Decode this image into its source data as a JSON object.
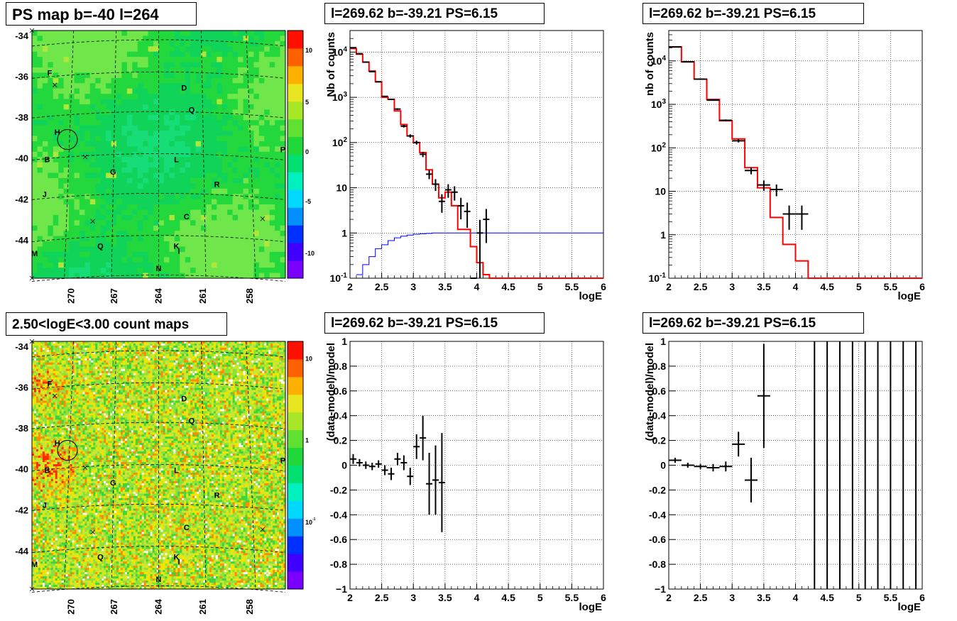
{
  "panels": {
    "map_top_title": "PS map b=-40 l=264",
    "spec_top_title": "l=269.62 b=-39.21 PS=6.15",
    "spec2_top_title": "l=269.62 b=-39.21 PS=6.15",
    "map_bottom_title": "2.50<logE<3.00 count maps",
    "res_bottom_title": "l=269.62 b=-39.21 PS=6.15",
    "res2_bottom_title": "l=269.62 b=-39.21 PS=6.15"
  },
  "maps": {
    "lat_ticks": [
      "-34",
      "-36",
      "-38",
      "-40",
      "-42",
      "-44"
    ],
    "lon_ticks": [
      "270",
      "267",
      "264",
      "261",
      "258"
    ],
    "sources": [
      "F",
      "D",
      "Q",
      "H",
      "P",
      "B",
      "L",
      "G",
      "J",
      "R",
      "C",
      "Q",
      "K",
      "I",
      "M",
      "N"
    ],
    "top_colorbar_ticks": [
      "10",
      "5",
      "0",
      "-5",
      "-10"
    ],
    "bottom_colorbar_ticks": [
      "10",
      "1",
      "10-1"
    ],
    "colors": {
      "base_green": "#1fd43a",
      "hot_red": "#ff2a00",
      "warm_yellow": "#f2e600"
    }
  },
  "chart_data": [
    {
      "type": "line",
      "panel": "spectrum-1",
      "title": "l=269.62 b=-39.21 PS=6.15",
      "xlabel": "logE",
      "ylabel": "Nb of counts",
      "xlim": [
        2,
        6
      ],
      "ylim": [
        0.1,
        30000
      ],
      "log_y": true,
      "grid": true,
      "x_ticks": [
        "2",
        "2.5",
        "3",
        "3.5",
        "4",
        "4.5",
        "5",
        "5.5",
        "6"
      ],
      "y_ticks": [
        "10-1",
        "1",
        "10",
        "102",
        "103",
        "104"
      ],
      "series": [
        {
          "role": "model-total",
          "color": "#ff0000",
          "edges": [
            2.0,
            2.1,
            2.2,
            2.3,
            2.4,
            2.5,
            2.6,
            2.7,
            2.8,
            2.9,
            3.0,
            3.1,
            3.2,
            3.3,
            3.4,
            3.5,
            3.6,
            3.7,
            3.8,
            3.9,
            4.0,
            4.1,
            4.2,
            6.0
          ],
          "values": [
            12000,
            9000,
            6000,
            3800,
            2200,
            1000,
            900,
            500,
            250,
            140,
            100,
            60,
            25,
            12,
            6,
            8,
            4,
            1.2,
            1.2,
            0.5,
            0.22,
            0.12,
            0.1
          ]
        },
        {
          "role": "point-source",
          "color": "#0000ff",
          "edges": [
            2.1,
            2.2,
            2.3,
            2.4,
            2.5,
            2.6,
            2.7,
            2.8,
            2.9,
            3.0,
            3.1,
            3.2,
            3.3,
            4.0,
            6.0
          ],
          "values": [
            0.12,
            0.2,
            0.3,
            0.45,
            0.55,
            0.68,
            0.78,
            0.85,
            0.9,
            0.94,
            0.96,
            0.98,
            1.0,
            1.0
          ]
        },
        {
          "role": "data",
          "color": "#000000",
          "x": [
            2.05,
            2.15,
            2.25,
            2.35,
            2.45,
            2.55,
            2.65,
            2.75,
            2.85,
            2.95,
            3.05,
            3.15,
            3.25,
            3.35,
            3.45,
            3.55,
            3.65,
            3.75,
            3.85,
            3.95,
            4.05,
            4.15
          ],
          "y": [
            12500,
            9200,
            6000,
            3700,
            2200,
            1050,
            900,
            550,
            230,
            140,
            100,
            55,
            20,
            12,
            5,
            9,
            8,
            4,
            3,
            0.1,
            1,
            2
          ],
          "err": [
            110,
            95,
            77,
            61,
            47,
            32,
            30,
            23,
            15,
            12,
            10,
            7.4,
            4.5,
            3.5,
            2.2,
            3,
            2.8,
            2,
            1.7,
            0,
            0.95,
            1.4
          ]
        }
      ]
    },
    {
      "type": "line",
      "panel": "spectrum-2",
      "title": "l=269.62 b=-39.21 PS=6.15",
      "xlabel": "logE",
      "ylabel": "nb of counts",
      "xlim": [
        2,
        6
      ],
      "ylim": [
        0.1,
        50000
      ],
      "log_y": true,
      "grid": true,
      "x_ticks": [
        "2",
        "2.5",
        "3",
        "3.5",
        "4",
        "4.5",
        "5",
        "5.5",
        "6"
      ],
      "y_ticks": [
        "10-1",
        "1",
        "10",
        "102",
        "103",
        "104"
      ],
      "series": [
        {
          "role": "model-total",
          "color": "#ff0000",
          "edges": [
            2.0,
            2.2,
            2.4,
            2.6,
            2.8,
            3.0,
            3.2,
            3.4,
            3.6,
            3.8,
            4.0,
            4.2,
            6.0
          ],
          "values": [
            21000,
            9500,
            3800,
            1300,
            420,
            160,
            35,
            12,
            2.5,
            0.6,
            0.25,
            0.1
          ]
        },
        {
          "role": "data",
          "color": "#000000",
          "x": [
            2.1,
            2.3,
            2.5,
            2.7,
            2.9,
            3.1,
            3.3,
            3.5,
            3.7,
            3.9,
            4.1
          ],
          "y": [
            21000,
            9500,
            3800,
            1250,
            430,
            145,
            30,
            14,
            11,
            3,
            3
          ],
          "err": [
            145,
            97,
            62,
            35,
            21,
            12,
            5.5,
            3.7,
            3.3,
            1.7,
            1.7
          ]
        }
      ]
    },
    {
      "type": "scatter",
      "panel": "residual-1",
      "title": "l=269.62 b=-39.21 PS=6.15",
      "xlabel": "logE",
      "ylabel": "(data-model)/model",
      "xlim": [
        2,
        6
      ],
      "ylim": [
        -1,
        1
      ],
      "grid": true,
      "x_ticks": [
        "2",
        "2.5",
        "3",
        "3.5",
        "4",
        "4.5",
        "5",
        "5.5",
        "6"
      ],
      "y_ticks": [
        "-1",
        "-0.8",
        "-0.6",
        "-0.4",
        "-0.2",
        "0",
        "0.2",
        "0.4",
        "0.6",
        "0.8",
        "1"
      ],
      "series": [
        {
          "role": "residuals",
          "color": "#000000",
          "x": [
            2.05,
            2.15,
            2.25,
            2.35,
            2.45,
            2.55,
            2.65,
            2.75,
            2.85,
            2.95,
            3.05,
            3.15,
            3.25,
            3.35,
            3.45
          ],
          "y": [
            0.05,
            0.02,
            0.0,
            -0.01,
            0.01,
            -0.04,
            -0.07,
            0.05,
            0.02,
            -0.09,
            0.15,
            0.22,
            -0.15,
            -0.12,
            -0.14
          ],
          "err": [
            0.04,
            0.03,
            0.03,
            0.03,
            0.03,
            0.04,
            0.05,
            0.05,
            0.06,
            0.07,
            0.1,
            0.18,
            0.25,
            0.28,
            0.4
          ]
        }
      ]
    },
    {
      "type": "scatter",
      "panel": "residual-2",
      "title": "l=269.62 b=-39.21 PS=6.15",
      "xlabel": "logE",
      "ylabel": "(data-model)/model",
      "xlim": [
        2,
        6
      ],
      "ylim": [
        -1,
        1
      ],
      "grid": true,
      "x_ticks": [
        "2",
        "2.5",
        "3",
        "3.5",
        "4",
        "4.5",
        "5",
        "5.5",
        "6"
      ],
      "y_ticks": [
        "-1",
        "-0.8",
        "-0.6",
        "-0.4",
        "-0.2",
        "0",
        "0.2",
        "0.4",
        "0.6",
        "0.8",
        "1"
      ],
      "series": [
        {
          "role": "residuals",
          "color": "#000000",
          "x": [
            2.1,
            2.3,
            2.5,
            2.7,
            2.9,
            3.1,
            3.3,
            3.5
          ],
          "y": [
            0.04,
            0.0,
            -0.01,
            -0.02,
            -0.01,
            0.17,
            -0.12,
            0.56
          ],
          "err": [
            0.02,
            0.02,
            0.02,
            0.03,
            0.04,
            0.1,
            0.18,
            0.42
          ]
        },
        {
          "role": "off-scale-bars",
          "color": "#000000",
          "x": [
            4.3,
            4.5,
            4.7,
            4.9,
            5.1,
            5.3,
            5.5,
            5.7,
            5.9
          ]
        }
      ]
    }
  ]
}
